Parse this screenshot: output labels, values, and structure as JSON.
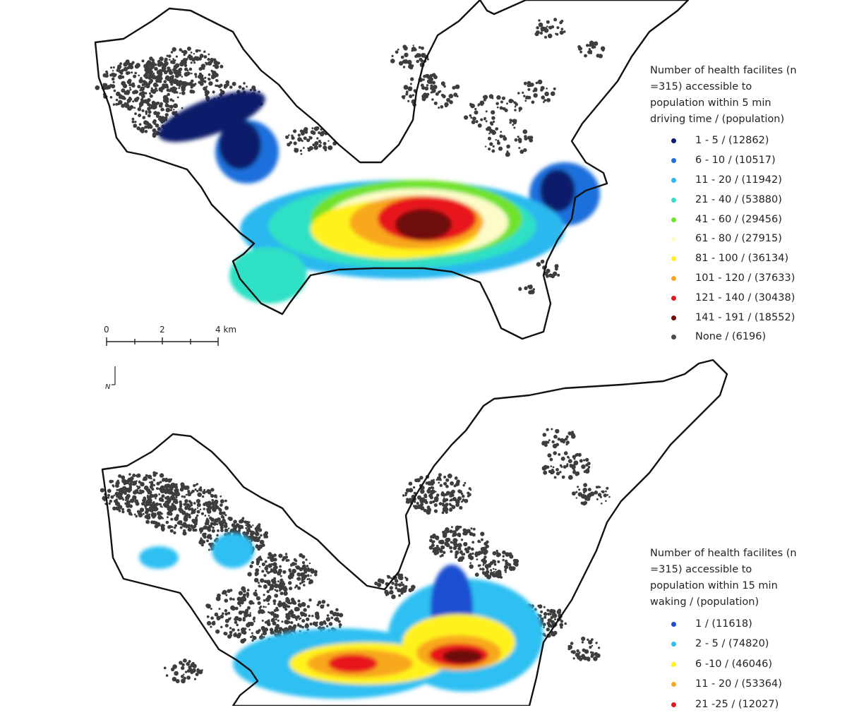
{
  "maps": [
    {
      "legend": {
        "title": "Number of health facilites (n =315) accessible to population within 5 min driving time / (population)",
        "items": [
          {
            "label": "1 - 5 / (12862)",
            "color": "#0d1d6b"
          },
          {
            "label": "6 - 10 / (10517)",
            "color": "#1f6fdc"
          },
          {
            "label": "11 - 20 / (11942)",
            "color": "#29b8ef"
          },
          {
            "label": "21 - 40 / (53880)",
            "color": "#2fe0c4"
          },
          {
            "label": "41 - 60 / (29456)",
            "color": "#6fe22c"
          },
          {
            "label": "61 - 80 / (27915)",
            "color": "#fdfbc8"
          },
          {
            "label": "81 - 100 / (36134)",
            "color": "#fff21a"
          },
          {
            "label": "101 - 120 / (37633)",
            "color": "#f8a81c"
          },
          {
            "label": "121 - 140 / (30438)",
            "color": "#e8141a"
          },
          {
            "label": "141 - 191 / (18552)",
            "color": "#6e0a0a"
          },
          {
            "label": "None / (6196)",
            "color": "#4a4a4a"
          }
        ]
      }
    },
    {
      "legend": {
        "title": "Number of health facilites (n =315) accessible to population within 15 min waking / (population)",
        "items": [
          {
            "label": "1 / (11618)",
            "color": "#1b4fd1"
          },
          {
            "label": "2 - 5 / (74820)",
            "color": "#2ec0f2"
          },
          {
            "label": "6 -10 / (46046)",
            "color": "#fff21a"
          },
          {
            "label": "11 - 20 / (53364)",
            "color": "#f8a81c"
          },
          {
            "label": "21 -25 / (12027)",
            "color": "#e8141a"
          }
        ]
      }
    }
  ],
  "scalebar": {
    "labels": [
      "0",
      "2",
      "4 km"
    ]
  },
  "north_arrow": {
    "label": "N"
  }
}
